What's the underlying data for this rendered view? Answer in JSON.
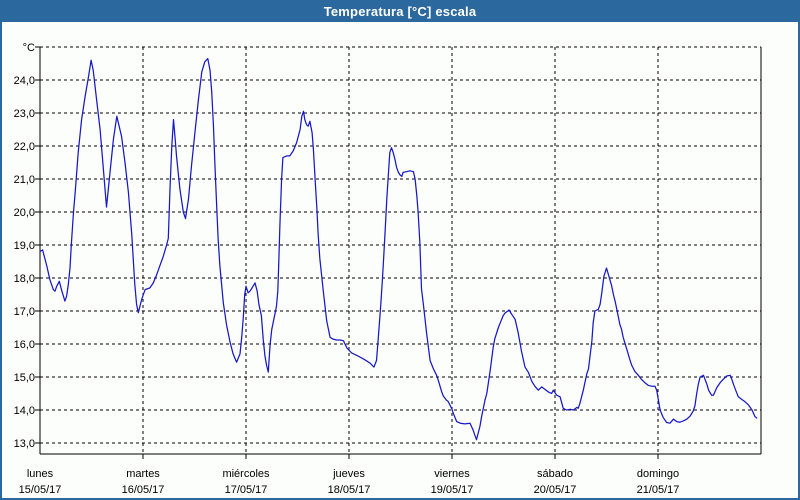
{
  "window": {
    "title": "Temperatura [°C] escala"
  },
  "colors": {
    "titlebar": "#2a689d",
    "window_border": "#2a689d",
    "background": "#fcfefb",
    "grid": "#000000",
    "axis": "#000000",
    "text": "#000000",
    "line": "#1818c8"
  },
  "chart_data": {
    "type": "line",
    "title": "Temperatura [°C] escala",
    "ylabel": "°C",
    "y_unit_label": "°C",
    "ylim": [
      13,
      25
    ],
    "ytick_step": 1,
    "ytick_labels_top_to_bottom": [
      "°C",
      "24,0",
      "23,0",
      "22,0",
      "21,0",
      "20,0",
      "19,0",
      "18,0",
      "17,0",
      "16,0",
      "15,0",
      "14,0",
      "13,0"
    ],
    "xlim_hours": [
      0,
      168
    ],
    "x_unit": "hours from lunes 00:00",
    "grid": "dashed",
    "legend_position": "none",
    "x_day_labels": [
      {
        "name": "lunes",
        "date": "15/05/17"
      },
      {
        "name": "martes",
        "date": "16/05/17"
      },
      {
        "name": "miércoles",
        "date": "17/05/17"
      },
      {
        "name": "jueves",
        "date": "18/05/17"
      },
      {
        "name": "viernes",
        "date": "19/05/17"
      },
      {
        "name": "sábado",
        "date": "20/05/17"
      },
      {
        "name": "domingo",
        "date": "21/05/17"
      }
    ],
    "series": [
      {
        "name": "Temperatura",
        "color": "#1818c8",
        "points": [
          [
            0,
            18.8
          ],
          [
            0.6,
            18.85
          ],
          [
            1.6,
            18.35
          ],
          [
            2.3,
            17.95
          ],
          [
            3.1,
            17.65
          ],
          [
            3.5,
            17.6
          ],
          [
            3.9,
            17.75
          ],
          [
            4.5,
            17.9
          ],
          [
            5.1,
            17.6
          ],
          [
            5.8,
            17.3
          ],
          [
            6.2,
            17.45
          ],
          [
            6.6,
            17.8
          ],
          [
            7,
            18.3
          ],
          [
            7.3,
            19
          ],
          [
            7.8,
            20
          ],
          [
            8.2,
            20.6
          ],
          [
            8.9,
            21.8
          ],
          [
            9.7,
            22.8
          ],
          [
            10.5,
            23.5
          ],
          [
            11.3,
            24.1
          ],
          [
            11.9,
            24.6
          ],
          [
            12.4,
            24.3
          ],
          [
            13.2,
            23.4
          ],
          [
            14,
            22.5
          ],
          [
            14.7,
            21.4
          ],
          [
            15.5,
            20.15
          ],
          [
            16.3,
            21.2
          ],
          [
            17.1,
            22.2
          ],
          [
            17.9,
            22.9
          ],
          [
            19,
            22.3
          ],
          [
            19.8,
            21.5
          ],
          [
            20.6,
            20.6
          ],
          [
            21.4,
            19.3
          ],
          [
            21.8,
            18.4
          ],
          [
            22.1,
            17.8
          ],
          [
            22.5,
            17.2
          ],
          [
            22.9,
            16.95
          ],
          [
            23.7,
            17.35
          ],
          [
            24.5,
            17.65
          ],
          [
            25.6,
            17.7
          ],
          [
            26.4,
            17.85
          ],
          [
            27.2,
            18.1
          ],
          [
            28,
            18.4
          ],
          [
            28.7,
            18.65
          ],
          [
            29.5,
            19
          ],
          [
            29.9,
            19.2
          ],
          [
            30.3,
            20.7
          ],
          [
            30.7,
            22
          ],
          [
            31.1,
            22.8
          ],
          [
            31.5,
            22.2
          ],
          [
            31.8,
            21.7
          ],
          [
            32.6,
            20.7
          ],
          [
            33.4,
            20
          ],
          [
            33.9,
            19.8
          ],
          [
            34.6,
            20.4
          ],
          [
            35.3,
            21.4
          ],
          [
            36.1,
            22.4
          ],
          [
            36.9,
            23.4
          ],
          [
            37.7,
            24.25
          ],
          [
            38.4,
            24.55
          ],
          [
            39.1,
            24.65
          ],
          [
            39.6,
            24.3
          ],
          [
            40,
            23.65
          ],
          [
            40.4,
            22.65
          ],
          [
            40.8,
            21.3
          ],
          [
            41.2,
            20.1
          ],
          [
            41.5,
            19.2
          ],
          [
            41.9,
            18.4
          ],
          [
            42.7,
            17.25
          ],
          [
            43.5,
            16.55
          ],
          [
            44.3,
            16.05
          ],
          [
            45,
            15.7
          ],
          [
            45.8,
            15.45
          ],
          [
            46.6,
            15.7
          ],
          [
            47,
            16.2
          ],
          [
            47.4,
            16.85
          ],
          [
            47.7,
            17.5
          ],
          [
            48,
            17.75
          ],
          [
            48.5,
            17.55
          ],
          [
            48.9,
            17.6
          ],
          [
            49.4,
            17.7
          ],
          [
            50.1,
            17.85
          ],
          [
            50.6,
            17.6
          ],
          [
            51,
            17.2
          ],
          [
            51.6,
            16.85
          ],
          [
            52,
            16.15
          ],
          [
            52.4,
            15.65
          ],
          [
            52.8,
            15.35
          ],
          [
            53.2,
            15.15
          ],
          [
            53.6,
            15.95
          ],
          [
            54,
            16.45
          ],
          [
            54.4,
            16.7
          ],
          [
            54.8,
            16.95
          ],
          [
            55.1,
            17.15
          ],
          [
            55.4,
            17.6
          ],
          [
            55.6,
            18.3
          ],
          [
            55.9,
            19.6
          ],
          [
            56.3,
            21
          ],
          [
            56.6,
            21.65
          ],
          [
            57.5,
            21.7
          ],
          [
            58.2,
            21.7
          ],
          [
            59,
            21.85
          ],
          [
            59.8,
            22.1
          ],
          [
            60.6,
            22.5
          ],
          [
            61,
            22.9
          ],
          [
            61.4,
            23.05
          ],
          [
            61.7,
            22.8
          ],
          [
            62.1,
            22.65
          ],
          [
            62.5,
            22.6
          ],
          [
            62.9,
            22.75
          ],
          [
            63.4,
            22.4
          ],
          [
            63.7,
            21.9
          ],
          [
            64.1,
            21
          ],
          [
            64.5,
            20.15
          ],
          [
            64.8,
            19.35
          ],
          [
            65.2,
            18.6
          ],
          [
            66,
            17.6
          ],
          [
            66.8,
            16.7
          ],
          [
            67.6,
            16.2
          ],
          [
            68.3,
            16.15
          ],
          [
            69.1,
            16.12
          ],
          [
            69.9,
            16.12
          ],
          [
            70.7,
            16.1
          ],
          [
            71.5,
            15.88
          ],
          [
            72.6,
            15.73
          ],
          [
            74.2,
            15.63
          ],
          [
            75.7,
            15.52
          ],
          [
            76.9,
            15.42
          ],
          [
            77.8,
            15.3
          ],
          [
            78.4,
            15.5
          ],
          [
            78.8,
            16.15
          ],
          [
            79.4,
            17.2
          ],
          [
            79.8,
            18
          ],
          [
            80.2,
            18.9
          ],
          [
            80.4,
            19.4
          ],
          [
            80.8,
            20.4
          ],
          [
            81.2,
            21.2
          ],
          [
            81.5,
            21.8
          ],
          [
            81.9,
            21.95
          ],
          [
            82.3,
            21.8
          ],
          [
            82.7,
            21.6
          ],
          [
            83.1,
            21.35
          ],
          [
            83.5,
            21.2
          ],
          [
            83.9,
            21.12
          ],
          [
            84.3,
            21.08
          ],
          [
            84.6,
            21.2
          ],
          [
            85.4,
            21.22
          ],
          [
            86.2,
            21.25
          ],
          [
            87,
            21.22
          ],
          [
            87.4,
            21
          ],
          [
            87.8,
            20.5
          ],
          [
            88.1,
            20
          ],
          [
            88.5,
            19.1
          ],
          [
            88.9,
            17.67
          ],
          [
            89.3,
            17.25
          ],
          [
            90.1,
            16.3
          ],
          [
            90.9,
            15.5
          ],
          [
            91.6,
            15.27
          ],
          [
            92.4,
            15.05
          ],
          [
            92.8,
            14.9
          ],
          [
            93.6,
            14.55
          ],
          [
            94,
            14.42
          ],
          [
            94.7,
            14.3
          ],
          [
            95.1,
            14.26
          ],
          [
            95.9,
            14.05
          ],
          [
            96.3,
            13.9
          ],
          [
            97.1,
            13.65
          ],
          [
            97.9,
            13.6
          ],
          [
            99,
            13.58
          ],
          [
            100.2,
            13.6
          ],
          [
            100.9,
            13.4
          ],
          [
            101.3,
            13.25
          ],
          [
            101.7,
            13.1
          ],
          [
            102.5,
            13.5
          ],
          [
            102.9,
            13.8
          ],
          [
            103.7,
            14.3
          ],
          [
            104.1,
            14.5
          ],
          [
            104.9,
            15.2
          ],
          [
            105.6,
            15.9
          ],
          [
            106,
            16.17
          ],
          [
            106.8,
            16.5
          ],
          [
            107.2,
            16.63
          ],
          [
            107.9,
            16.85
          ],
          [
            108.3,
            16.93
          ],
          [
            109.3,
            17.03
          ],
          [
            109.9,
            16.9
          ],
          [
            110.7,
            16.75
          ],
          [
            111.4,
            16.35
          ],
          [
            112.2,
            15.78
          ],
          [
            113,
            15.3
          ],
          [
            113.8,
            15.14
          ],
          [
            114.6,
            14.87
          ],
          [
            115.3,
            14.72
          ],
          [
            116.1,
            14.6
          ],
          [
            116.9,
            14.7
          ],
          [
            117.7,
            14.62
          ],
          [
            118.4,
            14.55
          ],
          [
            119.2,
            14.5
          ],
          [
            119.6,
            14.6
          ],
          [
            120.4,
            14.45
          ],
          [
            121.2,
            14.4
          ],
          [
            121.9,
            14.05
          ],
          [
            122.7,
            14
          ],
          [
            123.5,
            14.02
          ],
          [
            124.3,
            14
          ],
          [
            125.1,
            14.08
          ],
          [
            125.4,
            14.05
          ],
          [
            125.8,
            14.2
          ],
          [
            126.6,
            14.6
          ],
          [
            127.4,
            15.1
          ],
          [
            127.8,
            15.25
          ],
          [
            128.6,
            16.1
          ],
          [
            128.9,
            16.65
          ],
          [
            129.3,
            17
          ],
          [
            130.1,
            17.05
          ],
          [
            130.5,
            17.2
          ],
          [
            130.9,
            17.55
          ],
          [
            131.4,
            18.05
          ],
          [
            132,
            18.3
          ],
          [
            132.8,
            17.95
          ],
          [
            133.2,
            17.77
          ],
          [
            133.6,
            17.5
          ],
          [
            134,
            17.3
          ],
          [
            134.4,
            17.05
          ],
          [
            134.8,
            16.8
          ],
          [
            135.1,
            16.6
          ],
          [
            135.5,
            16.45
          ],
          [
            135.9,
            16.2
          ],
          [
            136.7,
            15.85
          ],
          [
            137.5,
            15.5
          ],
          [
            137.9,
            15.35
          ],
          [
            138.6,
            15.17
          ],
          [
            139.4,
            15.05
          ],
          [
            140.2,
            14.92
          ],
          [
            141,
            14.82
          ],
          [
            141.7,
            14.75
          ],
          [
            142.5,
            14.72
          ],
          [
            143.3,
            14.72
          ],
          [
            143.7,
            14.6
          ],
          [
            144.1,
            14.3
          ],
          [
            144.5,
            14
          ],
          [
            145.2,
            13.78
          ],
          [
            146,
            13.62
          ],
          [
            146.8,
            13.6
          ],
          [
            147.6,
            13.72
          ],
          [
            148.4,
            13.65
          ],
          [
            149.1,
            13.63
          ],
          [
            149.9,
            13.67
          ],
          [
            150.7,
            13.72
          ],
          [
            151.5,
            13.82
          ],
          [
            152.2,
            13.97
          ],
          [
            152.6,
            14.12
          ],
          [
            153,
            14.48
          ],
          [
            153.4,
            14.78
          ],
          [
            153.8,
            15
          ],
          [
            154.6,
            15.05
          ],
          [
            155.4,
            14.78
          ],
          [
            155.8,
            14.6
          ],
          [
            156.5,
            14.45
          ],
          [
            156.9,
            14.45
          ],
          [
            157.7,
            14.68
          ],
          [
            158.5,
            14.83
          ],
          [
            159.2,
            14.93
          ],
          [
            160,
            15.03
          ],
          [
            160.8,
            15.05
          ],
          [
            161.2,
            14.93
          ],
          [
            161.6,
            14.78
          ],
          [
            162,
            14.63
          ],
          [
            162.7,
            14.4
          ],
          [
            163.5,
            14.32
          ],
          [
            164.3,
            14.25
          ],
          [
            165.1,
            14.15
          ],
          [
            165.9,
            14
          ],
          [
            166.6,
            13.8
          ],
          [
            167.1,
            13.75
          ]
        ]
      }
    ]
  }
}
